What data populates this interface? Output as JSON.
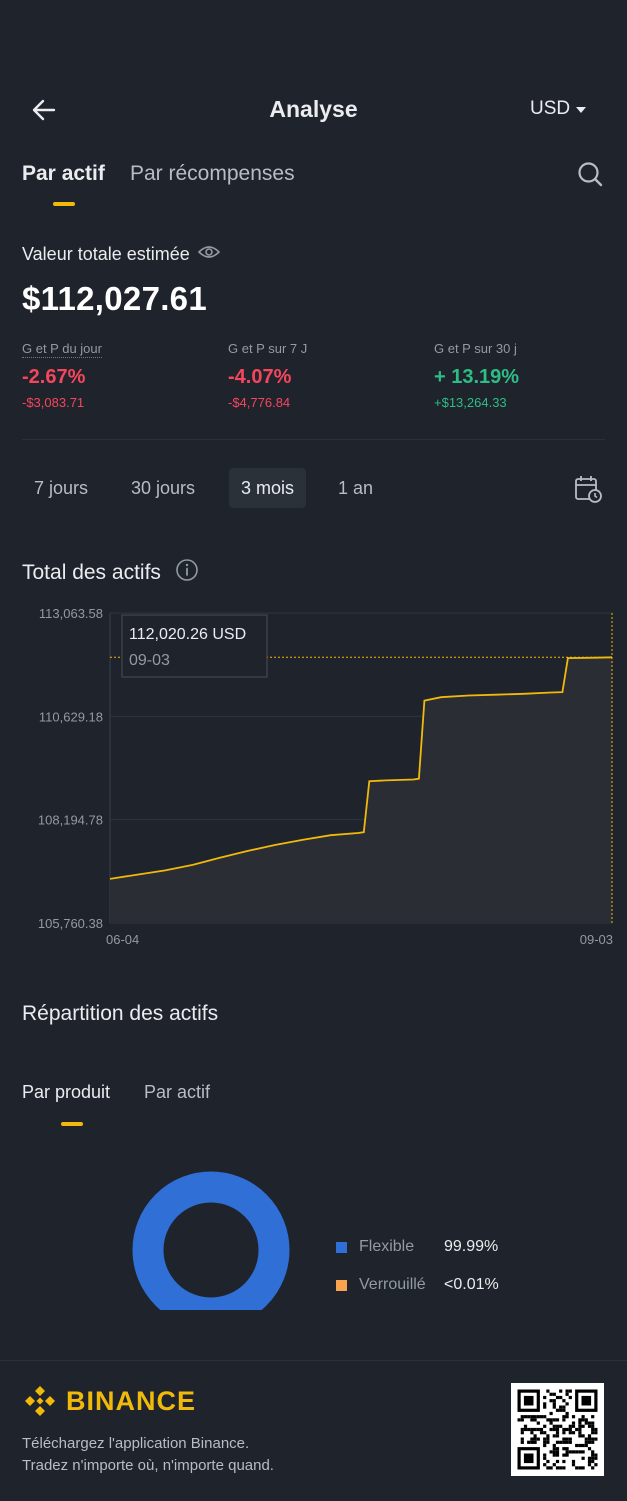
{
  "header": {
    "title": "Analyse",
    "currency": "USD"
  },
  "tabs": [
    {
      "label": "Par actif",
      "active": true
    },
    {
      "label": "Par récompenses",
      "active": false
    }
  ],
  "summary": {
    "label": "Valeur totale estimée",
    "value": "$112,027.61",
    "pnl": [
      {
        "label": "G et P du jour",
        "pct": "-2.67%",
        "abs": "-$3,083.71",
        "trend": "down"
      },
      {
        "label": "G et P sur 7 J",
        "pct": "-4.07%",
        "abs": "-$4,776.84",
        "trend": "down"
      },
      {
        "label": "G et P sur 30 j",
        "pct": "+ 13.19%",
        "abs": "+$13,264.33",
        "trend": "up"
      }
    ]
  },
  "ranges": [
    {
      "label": "7 jours",
      "active": false
    },
    {
      "label": "30 jours",
      "active": false
    },
    {
      "label": "3 mois",
      "active": true
    },
    {
      "label": "1 an",
      "active": false
    }
  ],
  "chart_section": {
    "title": "Total des actifs"
  },
  "chart_data": {
    "type": "line",
    "title": "Total des actifs",
    "y_ticks": [
      "113,063.58",
      "110,629.18",
      "108,194.78",
      "105,760.38"
    ],
    "ylim": [
      105760.38,
      113063.58
    ],
    "x_ticks": [
      "06-04",
      "09-03"
    ],
    "xlim": [
      0,
      91
    ],
    "tooltip": {
      "value": "112,020.26 USD",
      "date": "09-03"
    },
    "series": [
      {
        "color": "#f0b90b",
        "points": [
          [
            0,
            106800
          ],
          [
            5,
            106900
          ],
          [
            10,
            107000
          ],
          [
            15,
            107130
          ],
          [
            20,
            107300
          ],
          [
            25,
            107460
          ],
          [
            30,
            107600
          ],
          [
            35,
            107720
          ],
          [
            40,
            107830
          ],
          [
            45,
            107880
          ],
          [
            46,
            107900
          ],
          [
            47,
            109100
          ],
          [
            50,
            109120
          ],
          [
            55,
            109140
          ],
          [
            56,
            109160
          ],
          [
            57,
            111000
          ],
          [
            60,
            111080
          ],
          [
            65,
            111120
          ],
          [
            70,
            111140
          ],
          [
            75,
            111160
          ],
          [
            80,
            111190
          ],
          [
            82,
            111200
          ],
          [
            83,
            112000
          ],
          [
            88,
            112010
          ],
          [
            91,
            112020
          ]
        ]
      }
    ],
    "grid": true
  },
  "allocation": {
    "title": "Répartition des actifs",
    "tabs": [
      {
        "label": "Par produit",
        "active": true
      },
      {
        "label": "Par actif",
        "active": false
      }
    ],
    "items": [
      {
        "name": "Flexible",
        "value": "99.99%",
        "color": "#2f6fd6"
      },
      {
        "name": "Verrouillé",
        "value": "<0.01%",
        "color": "#f7a350"
      }
    ]
  },
  "footer": {
    "brand": "BINANCE",
    "line1": "Téléchargez l'application Binance.",
    "line2": "Tradez n'importe où, n'importe quand."
  }
}
